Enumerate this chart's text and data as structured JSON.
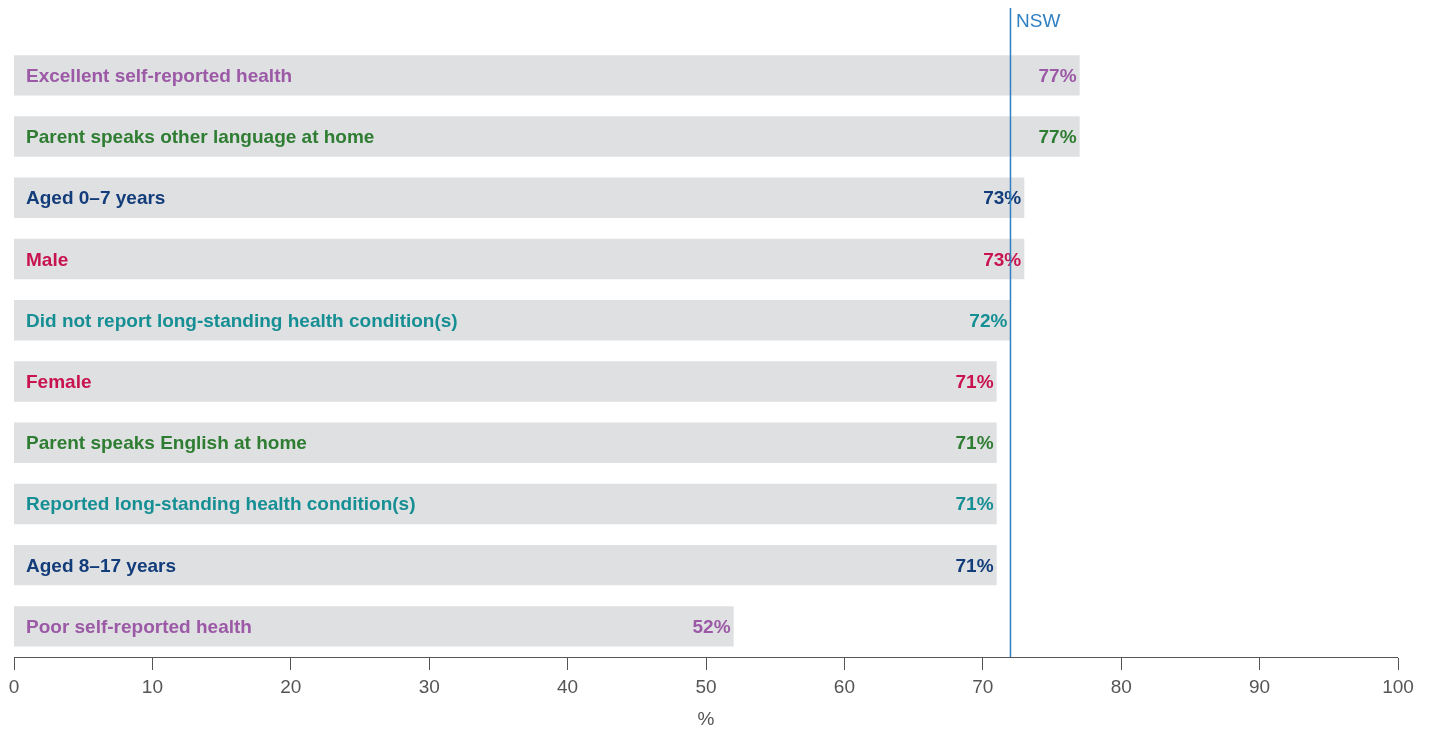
{
  "chart_data": {
    "type": "bar",
    "orientation": "horizontal",
    "categories": [
      "Excellent self-reported health",
      "Parent speaks other language at home",
      "Aged 0–7 years",
      "Male",
      "Did not report long-standing health condition(s)",
      "Female",
      "Parent speaks English at home",
      "Reported long-standing health condition(s)",
      "Aged 8–17 years",
      "Poor self-reported health"
    ],
    "values": [
      77,
      77,
      73,
      73,
      72,
      71,
      71,
      71,
      71,
      52
    ],
    "value_labels": [
      "77%",
      "77%",
      "73%",
      "73%",
      "72%",
      "71%",
      "71%",
      "71%",
      "71%",
      "52%"
    ],
    "colors": [
      "#dfe0e2",
      "#dfe0e2",
      "#dfe0e2",
      "#dfe0e2",
      "#dfe0e2",
      "#dfe0e2",
      "#dfe0e2",
      "#dfe0e2",
      "#dfe0e2",
      "#dfe0e2"
    ],
    "xlabel": "%",
    "xlim": [
      0,
      100
    ],
    "xticks": [
      0,
      10,
      20,
      30,
      40,
      50,
      60,
      70,
      80,
      90,
      100
    ],
    "ref_lines": [
      {
        "axis": "x",
        "value": 72,
        "label": "NSW",
        "color": "#2f7fc1"
      }
    ],
    "legend": false
  }
}
